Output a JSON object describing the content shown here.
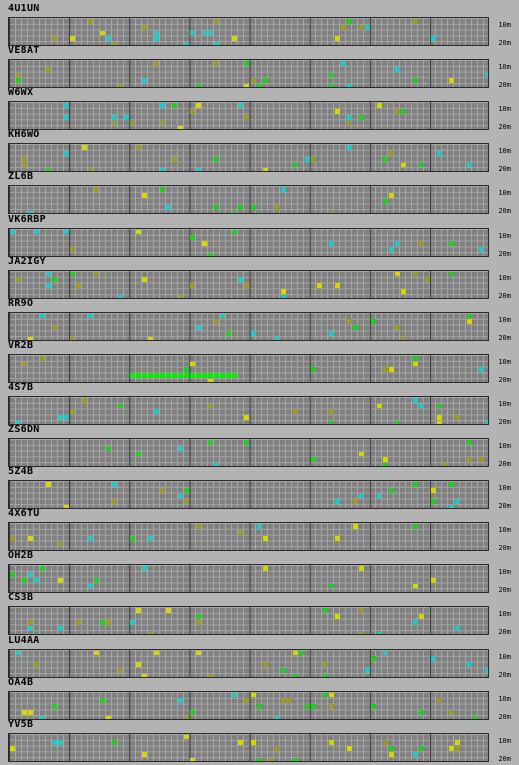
{
  "stations": [
    {
      "callsign": "4U1UN"
    },
    {
      "callsign": "VE8AT"
    },
    {
      "callsign": "W6WX"
    },
    {
      "callsign": "KH6WO"
    },
    {
      "callsign": "ZL6B"
    },
    {
      "callsign": "VK6RBP"
    },
    {
      "callsign": "JA2IGY"
    },
    {
      "callsign": "RR9O"
    },
    {
      "callsign": "VR2B"
    },
    {
      "callsign": "4S7B"
    },
    {
      "callsign": "ZS6DN"
    },
    {
      "callsign": "5Z4B"
    },
    {
      "callsign": "4X6TU"
    },
    {
      "callsign": "OH2B"
    },
    {
      "callsign": "CS3B"
    },
    {
      "callsign": "LU4AA"
    },
    {
      "callsign": "OA4B"
    },
    {
      "callsign": "YV5B"
    }
  ],
  "band_labels": {
    "top": "10m",
    "bottom": "20m"
  },
  "colors": {
    "background": "#b3b3b3",
    "grid_bg": "#808080",
    "grid_line": "#a6a6a6",
    "grid_major_line": "#303030",
    "yellow": "#d6d600",
    "olive": "#9a9a2a",
    "green": "#22cc22",
    "bright_green": "#00ee00",
    "cyan": "#20c8c8",
    "white": "#d8d8d8"
  }
}
